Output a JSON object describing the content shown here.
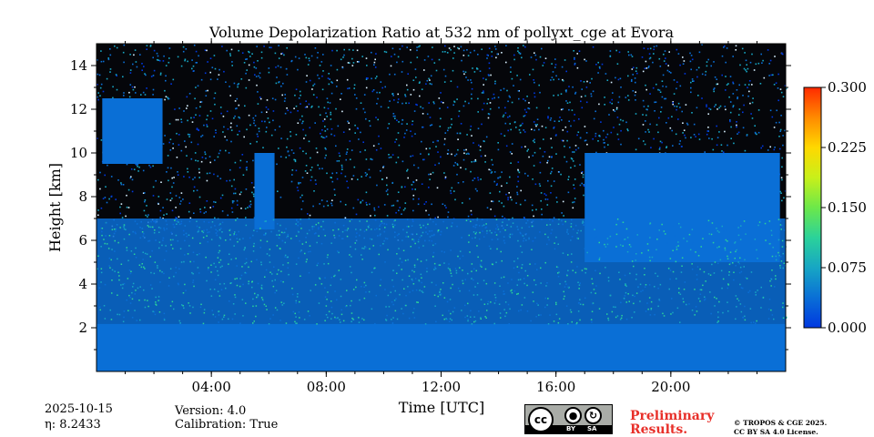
{
  "chart_data": {
    "type": "heatmap",
    "title": "Volume Depolarization Ratio at 532 nm of pollyxt_cge at Evora",
    "xlabel": "Time [UTC]",
    "ylabel": "Height [km]",
    "xlim_hours": [
      0,
      24
    ],
    "ylim_km": [
      0,
      15
    ],
    "x_ticks": [
      {
        "hour": 4,
        "label": "04:00"
      },
      {
        "hour": 8,
        "label": "08:00"
      },
      {
        "hour": 12,
        "label": "12:00"
      },
      {
        "hour": 16,
        "label": "16:00"
      },
      {
        "hour": 20,
        "label": "20:00"
      }
    ],
    "x_minor_tick_interval_hours": 1,
    "y_ticks": [
      {
        "km": 2,
        "label": "2"
      },
      {
        "km": 4,
        "label": "4"
      },
      {
        "km": 6,
        "label": "6"
      },
      {
        "km": 8,
        "label": "8"
      },
      {
        "km": 10,
        "label": "10"
      },
      {
        "km": 12,
        "label": "12"
      },
      {
        "km": 14,
        "label": "14"
      }
    ],
    "y_minor_tick_interval_km": 1,
    "colorbar": {
      "min": 0.0,
      "max": 0.3,
      "ticks": [
        {
          "value": 0.0,
          "label": "0.000"
        },
        {
          "value": 0.075,
          "label": "0.075"
        },
        {
          "value": 0.15,
          "label": "0.150"
        },
        {
          "value": 0.225,
          "label": "0.225"
        },
        {
          "value": 0.3,
          "label": "0.300"
        }
      ],
      "colors": [
        "#0038e0",
        "#0a6fd6",
        "#17a6c4",
        "#2bd29a",
        "#6ce84a",
        "#c8f01a",
        "#ffd800",
        "#ff8a00",
        "#ff2a00"
      ]
    },
    "regions": [
      {
        "name": "boundary layer",
        "hours": [
          0,
          24
        ],
        "height_km": [
          0,
          2.2
        ],
        "value": 0.02
      },
      {
        "name": "aerosol layer",
        "hours": [
          0,
          24
        ],
        "height_km": [
          2.2,
          7
        ],
        "value": 0.04
      },
      {
        "name": "cirrus cloud early",
        "hours": [
          0.2,
          2.3
        ],
        "height_km": [
          9.5,
          12.5
        ],
        "value": 0.04
      },
      {
        "name": "cirrus streak",
        "hours": [
          5.5,
          6.2
        ],
        "height_km": [
          6.5,
          10
        ],
        "value": 0.035
      },
      {
        "name": "cirrus cloud late",
        "hours": [
          17,
          23.8
        ],
        "height_km": [
          5,
          10
        ],
        "value": 0.03
      },
      {
        "name": "background noise",
        "hours": [
          0,
          24
        ],
        "height_km": [
          7,
          15
        ],
        "value": "noisy"
      }
    ]
  },
  "info": {
    "date": "2025-10-15",
    "eta_label": "η: 8.2433",
    "version": "Version: 4.0",
    "calibration": "Calibration: True",
    "preliminary_line1": "Preliminary",
    "preliminary_line2": "Results.",
    "license_line1": "© TROPOS & CGE 2025.",
    "license_line2": "CC BY SA 4.0 License.",
    "cc_label_main": "cc",
    "cc_label_by": "BY",
    "cc_label_sa": "SA"
  }
}
